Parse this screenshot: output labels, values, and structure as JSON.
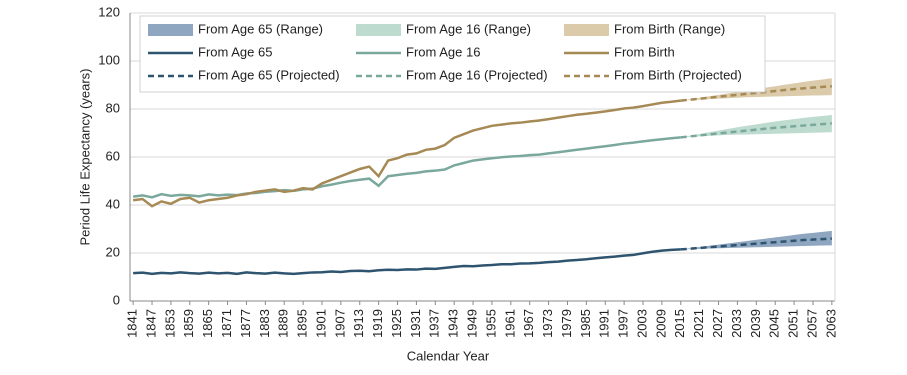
{
  "chart_data": {
    "type": "line",
    "x_label": "Calendar Year",
    "y_label": "Period Life Expectancy (years)",
    "xlim": [
      1840,
      2064
    ],
    "xticks": [
      1841,
      1847,
      1853,
      1859,
      1865,
      1871,
      1877,
      1883,
      1889,
      1895,
      1901,
      1907,
      1913,
      1919,
      1925,
      1931,
      1937,
      1943,
      1949,
      1955,
      1961,
      1967,
      1973,
      1979,
      1985,
      1991,
      1997,
      2003,
      2009,
      2015,
      2021,
      2027,
      2033,
      2039,
      2045,
      2051,
      2057,
      2063
    ],
    "ylim": [
      0,
      120
    ],
    "yticks": [
      0,
      20,
      40,
      60,
      80,
      100,
      120
    ],
    "grid": true,
    "legend": "top-left",
    "series": [
      {
        "name": "From Age 65 (Range)",
        "style": "range",
        "color": "#8ea6c0",
        "x": [
          2015,
          2018,
          2021,
          2024,
          2027,
          2030,
          2033,
          2036,
          2039,
          2042,
          2045,
          2048,
          2051,
          2054,
          2057,
          2060,
          2063
        ],
        "low": [
          21.5,
          21.6,
          21.7,
          21.9,
          22.0,
          22.1,
          22.2,
          22.3,
          22.4,
          22.5,
          22.6,
          22.7,
          22.8,
          22.9,
          23.0,
          23.1,
          23.2
        ],
        "high": [
          21.5,
          22.0,
          22.5,
          23.0,
          23.5,
          24.0,
          24.5,
          25.0,
          25.5,
          26.0,
          26.5,
          27.0,
          27.5,
          28.0,
          28.4,
          28.8,
          29.2
        ]
      },
      {
        "name": "From Age 16 (Range)",
        "style": "range",
        "color": "#bddbcf",
        "x": [
          2015,
          2018,
          2021,
          2024,
          2027,
          2030,
          2033,
          2036,
          2039,
          2042,
          2045,
          2048,
          2051,
          2054,
          2057,
          2060,
          2063
        ],
        "low": [
          68.2,
          68.4,
          68.6,
          68.8,
          69.0,
          69.2,
          69.3,
          69.4,
          69.5,
          69.6,
          69.7,
          69.8,
          69.9,
          70.0,
          70.1,
          70.2,
          70.3
        ],
        "high": [
          68.2,
          68.9,
          69.6,
          70.3,
          71.0,
          71.7,
          72.4,
          73.0,
          73.6,
          74.2,
          74.8,
          75.3,
          75.8,
          76.3,
          76.7,
          77.1,
          77.5
        ]
      },
      {
        "name": "From Birth (Range)",
        "style": "range",
        "color": "#dccbaa",
        "x": [
          2015,
          2018,
          2021,
          2024,
          2027,
          2030,
          2033,
          2036,
          2039,
          2042,
          2045,
          2048,
          2051,
          2054,
          2057,
          2060,
          2063
        ],
        "low": [
          83.5,
          83.7,
          83.9,
          84.1,
          84.3,
          84.5,
          84.7,
          84.9,
          85.0,
          85.1,
          85.2,
          85.3,
          85.4,
          85.5,
          85.6,
          85.7,
          85.8
        ],
        "high": [
          83.5,
          84.1,
          84.7,
          85.3,
          85.9,
          86.5,
          87.1,
          87.7,
          88.3,
          88.9,
          89.5,
          90.1,
          90.7,
          91.3,
          91.8,
          92.3,
          92.8
        ]
      },
      {
        "name": "From Age 65",
        "style": "solid",
        "color": "#2f5470",
        "x": [
          1841,
          1844,
          1847,
          1850,
          1853,
          1856,
          1859,
          1862,
          1865,
          1868,
          1871,
          1874,
          1877,
          1880,
          1883,
          1886,
          1889,
          1892,
          1895,
          1898,
          1901,
          1904,
          1907,
          1910,
          1913,
          1916,
          1919,
          1922,
          1925,
          1928,
          1931,
          1934,
          1937,
          1940,
          1943,
          1946,
          1949,
          1952,
          1955,
          1958,
          1961,
          1964,
          1967,
          1970,
          1973,
          1976,
          1979,
          1982,
          1985,
          1988,
          1991,
          1994,
          1997,
          2000,
          2003,
          2006,
          2009,
          2012,
          2015
        ],
        "values": [
          11.6,
          11.8,
          11.3,
          11.7,
          11.5,
          11.9,
          11.6,
          11.4,
          11.8,
          11.5,
          11.7,
          11.3,
          11.9,
          11.6,
          11.4,
          11.8,
          11.5,
          11.3,
          11.6,
          11.9,
          12.0,
          12.3,
          12.1,
          12.5,
          12.6,
          12.4,
          12.8,
          13.0,
          12.9,
          13.2,
          13.1,
          13.5,
          13.4,
          13.8,
          14.2,
          14.6,
          14.5,
          14.8,
          15.0,
          15.3,
          15.3,
          15.6,
          15.7,
          15.9,
          16.2,
          16.4,
          16.8,
          17.1,
          17.4,
          17.8,
          18.2,
          18.5,
          18.9,
          19.2,
          19.9,
          20.5,
          21.0,
          21.3,
          21.5
        ]
      },
      {
        "name": "From Age 16",
        "style": "solid",
        "color": "#7ba89d",
        "x": [
          1841,
          1844,
          1847,
          1850,
          1853,
          1856,
          1859,
          1862,
          1865,
          1868,
          1871,
          1874,
          1877,
          1880,
          1883,
          1886,
          1889,
          1892,
          1895,
          1898,
          1901,
          1904,
          1907,
          1910,
          1913,
          1916,
          1919,
          1922,
          1925,
          1928,
          1931,
          1934,
          1937,
          1940,
          1943,
          1946,
          1949,
          1952,
          1955,
          1958,
          1961,
          1964,
          1967,
          1970,
          1973,
          1976,
          1979,
          1982,
          1985,
          1988,
          1991,
          1994,
          1997,
          2000,
          2003,
          2006,
          2009,
          2012,
          2015
        ],
        "values": [
          43.5,
          44.0,
          43.2,
          44.5,
          43.8,
          44.2,
          44.0,
          43.6,
          44.4,
          44.0,
          44.3,
          44.1,
          44.8,
          45.0,
          45.5,
          45.8,
          46.2,
          45.9,
          46.5,
          46.8,
          47.8,
          48.5,
          49.3,
          50.0,
          50.5,
          51.0,
          48.0,
          52.0,
          52.5,
          53.0,
          53.4,
          54.0,
          54.3,
          54.8,
          56.5,
          57.5,
          58.5,
          59.0,
          59.5,
          59.9,
          60.2,
          60.4,
          60.8,
          61.0,
          61.5,
          62.0,
          62.5,
          63.0,
          63.5,
          64.0,
          64.5,
          65.0,
          65.6,
          66.0,
          66.5,
          67.0,
          67.4,
          67.8,
          68.2
        ]
      },
      {
        "name": "From Birth",
        "style": "solid",
        "color": "#a68a55",
        "x": [
          1841,
          1844,
          1847,
          1850,
          1853,
          1856,
          1859,
          1862,
          1865,
          1868,
          1871,
          1874,
          1877,
          1880,
          1883,
          1886,
          1889,
          1892,
          1895,
          1898,
          1901,
          1904,
          1907,
          1910,
          1913,
          1916,
          1919,
          1922,
          1925,
          1928,
          1931,
          1934,
          1937,
          1940,
          1943,
          1946,
          1949,
          1952,
          1955,
          1958,
          1961,
          1964,
          1967,
          1970,
          1973,
          1976,
          1979,
          1982,
          1985,
          1988,
          1991,
          1994,
          1997,
          2000,
          2003,
          2006,
          2009,
          2012,
          2015
        ],
        "values": [
          42.0,
          42.5,
          39.5,
          41.5,
          40.5,
          42.5,
          43.0,
          41.0,
          42.0,
          42.5,
          43.0,
          44.0,
          44.5,
          45.5,
          46.0,
          46.5,
          45.5,
          46.0,
          47.0,
          46.5,
          49.0,
          50.5,
          52.0,
          53.5,
          55.0,
          56.0,
          52.0,
          58.5,
          59.5,
          61.0,
          61.5,
          63.0,
          63.5,
          65.0,
          68.0,
          69.5,
          71.0,
          72.0,
          73.0,
          73.5,
          74.0,
          74.3,
          74.8,
          75.2,
          75.8,
          76.4,
          77.0,
          77.6,
          78.0,
          78.5,
          79.0,
          79.6,
          80.2,
          80.6,
          81.2,
          81.9,
          82.6,
          83.0,
          83.5
        ]
      },
      {
        "name": "From Age 65 (Projected)",
        "style": "dashed",
        "color": "#2f5470",
        "x": [
          2015,
          2018,
          2021,
          2024,
          2027,
          2030,
          2033,
          2036,
          2039,
          2042,
          2045,
          2048,
          2051,
          2054,
          2057,
          2060,
          2063
        ],
        "values": [
          21.5,
          21.8,
          22.1,
          22.4,
          22.7,
          23.0,
          23.3,
          23.6,
          23.9,
          24.2,
          24.5,
          24.8,
          25.1,
          25.4,
          25.6,
          25.8,
          26.0
        ]
      },
      {
        "name": "From Age 16 (Projected)",
        "style": "dashed",
        "color": "#7ba89d",
        "x": [
          2015,
          2018,
          2021,
          2024,
          2027,
          2030,
          2033,
          2036,
          2039,
          2042,
          2045,
          2048,
          2051,
          2054,
          2057,
          2060,
          2063
        ],
        "values": [
          68.2,
          68.6,
          69.0,
          69.4,
          69.8,
          70.2,
          70.6,
          71.0,
          71.4,
          71.8,
          72.2,
          72.5,
          72.8,
          73.1,
          73.4,
          73.7,
          74.0
        ]
      },
      {
        "name": "From Birth (Projected)",
        "style": "dashed",
        "color": "#a68a55",
        "x": [
          2015,
          2018,
          2021,
          2024,
          2027,
          2030,
          2033,
          2036,
          2039,
          2042,
          2045,
          2048,
          2051,
          2054,
          2057,
          2060,
          2063
        ],
        "values": [
          83.5,
          83.9,
          84.3,
          84.7,
          85.1,
          85.5,
          85.9,
          86.3,
          86.7,
          87.1,
          87.5,
          87.9,
          88.3,
          88.6,
          88.9,
          89.2,
          89.5
        ]
      }
    ]
  }
}
